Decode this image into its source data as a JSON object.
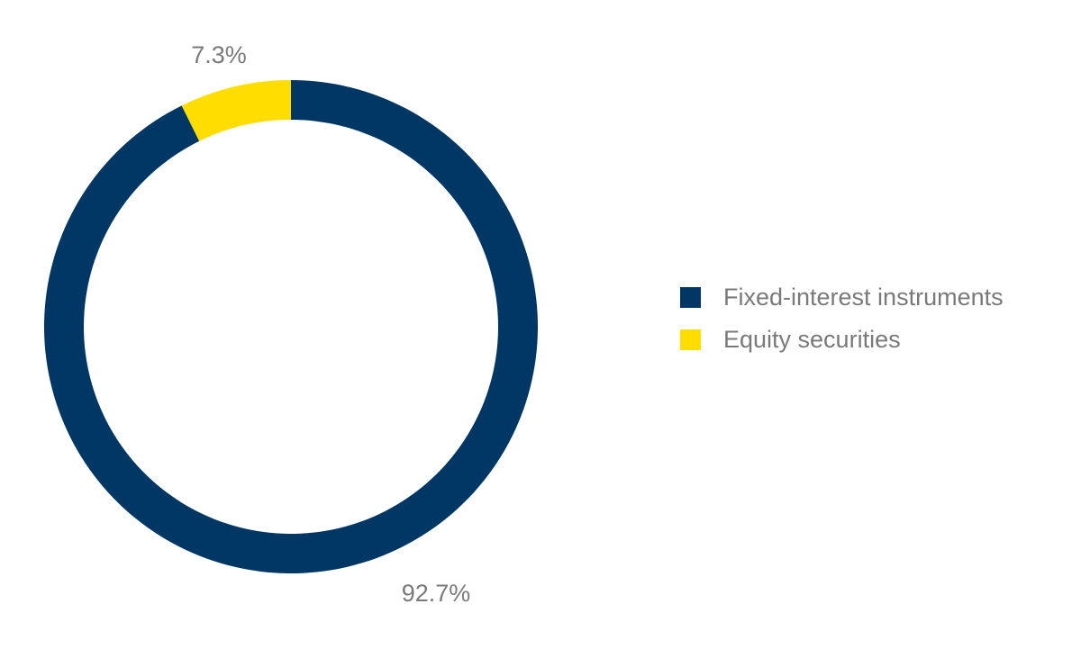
{
  "chart_data": {
    "type": "pie",
    "style": "donut",
    "title": "",
    "categories": [
      "Fixed-interest instruments",
      "Equity securities"
    ],
    "values": [
      92.7,
      7.3
    ],
    "unit": "%",
    "data_labels": [
      "92.7%",
      "7.3%"
    ],
    "colors": [
      "#003764",
      "#ffdd00"
    ],
    "start_angle": "12 o'clock",
    "direction": "clockwise",
    "legend_position": "right"
  },
  "legend": {
    "items": [
      {
        "label": "Fixed-interest instruments",
        "color": "#003764"
      },
      {
        "label": "Equity securities",
        "color": "#ffdd00"
      }
    ]
  }
}
